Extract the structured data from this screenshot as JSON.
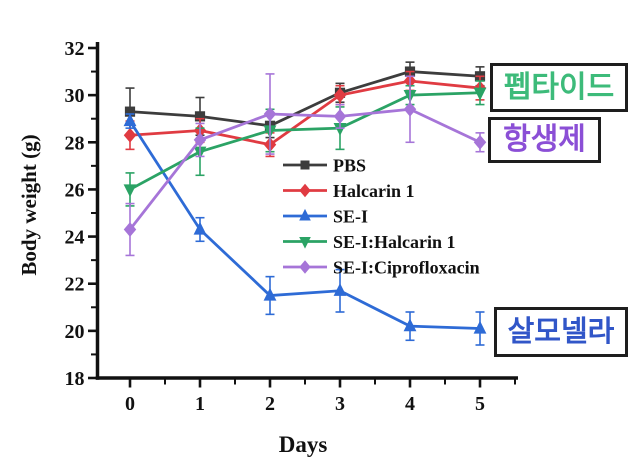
{
  "annotations": {
    "peptide": {
      "label": "펩타이드",
      "color": "#3dbb7a"
    },
    "antibiotic": {
      "label": "항생제",
      "color": "#8b4fd6"
    },
    "salmonella": {
      "label": "살모넬라",
      "color": "#3156c8"
    }
  },
  "chart_data": {
    "type": "line",
    "title": "",
    "xlabel": "Days",
    "ylabel": "Body weight (g)",
    "x": [
      0,
      1,
      2,
      3,
      4,
      5
    ],
    "x_ticks": [
      0,
      1,
      2,
      3,
      4,
      5
    ],
    "x_minor_ticks": [
      0.5,
      1.5,
      2.5,
      3.5,
      4.5,
      5.5
    ],
    "y_ticks": [
      18,
      20,
      22,
      24,
      26,
      28,
      30,
      32
    ],
    "y_minor_ticks": [
      19,
      21,
      23,
      25,
      27,
      29,
      31
    ],
    "xlim": [
      -0.5,
      5.55
    ],
    "ylim": [
      18,
      32.25
    ],
    "grid": false,
    "legend_position": "inside-right",
    "axis_color": "#111111",
    "series": [
      {
        "name": "PBS",
        "color": "#3d3d3d",
        "marker": "square",
        "values": [
          29.3,
          29.1,
          28.7,
          30.1,
          31.0,
          30.8
        ],
        "errors": [
          1.0,
          0.8,
          0.5,
          0.4,
          0.4,
          0.4
        ]
      },
      {
        "name": "Halcarin 1",
        "color": "#e03b42",
        "marker": "diamond",
        "values": [
          28.3,
          28.5,
          27.9,
          30.0,
          30.6,
          30.3
        ],
        "errors": [
          0.6,
          0.5,
          0.5,
          0.4,
          0.4,
          0.5
        ]
      },
      {
        "name": "SE-I",
        "color": "#2e6bd6",
        "marker": "triangle-up",
        "values": [
          28.9,
          24.3,
          21.5,
          21.7,
          20.2,
          20.1
        ],
        "errors": [
          0.3,
          0.5,
          0.8,
          0.9,
          0.6,
          0.7
        ]
      },
      {
        "name": "SE-I:Halcarin 1",
        "color": "#2ba365",
        "marker": "triangle-down",
        "values": [
          26.0,
          27.6,
          28.5,
          28.6,
          30.0,
          30.1
        ],
        "errors": [
          0.7,
          1.0,
          0.9,
          0.9,
          0.4,
          0.5
        ]
      },
      {
        "name": "SE-I:Ciprofloxacin",
        "color": "#a675d8",
        "marker": "diamond",
        "values": [
          24.3,
          28.1,
          29.2,
          29.1,
          29.4,
          28.0
        ],
        "errors": [
          1.1,
          0.7,
          1.7,
          0.5,
          1.4,
          0.4
        ]
      }
    ]
  }
}
